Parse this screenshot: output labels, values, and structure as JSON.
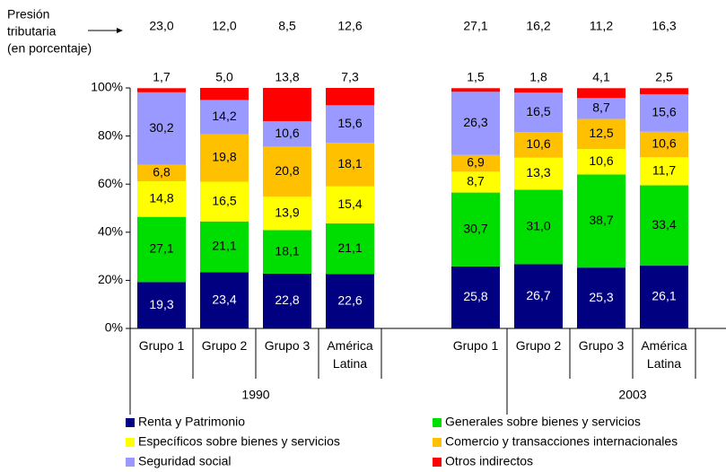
{
  "chart_data": {
    "type": "stacked_bar",
    "categories": [
      "Grupo 1",
      "Grupo 2",
      "Grupo 3",
      "América Latina",
      "Grupo 1",
      "Grupo 2",
      "Grupo 3",
      "América Latina"
    ],
    "groups": [
      "1990",
      "2003"
    ],
    "series": [
      {
        "name": "Renta y Patrimonio",
        "color": "#000080",
        "values": [
          19.3,
          23.4,
          22.8,
          22.6,
          25.8,
          26.7,
          25.3,
          26.1
        ],
        "value_labels": [
          "19,3",
          "23,4",
          "22,8",
          "22,6",
          "25,8",
          "26,7",
          "25,3",
          "26,1"
        ]
      },
      {
        "name": "Generales sobre bienes y servicios",
        "color": "#00dd00",
        "values": [
          27.1,
          21.1,
          18.1,
          21.1,
          30.7,
          31.0,
          38.7,
          33.4
        ],
        "value_labels": [
          "27,1",
          "21,1",
          "18,1",
          "21,1",
          "30,7",
          "31,0",
          "38,7",
          "33,4"
        ]
      },
      {
        "name": "Específicos sobre bienes y servicios",
        "color": "#ffff00",
        "values": [
          14.8,
          16.5,
          13.9,
          15.4,
          8.7,
          13.3,
          10.6,
          11.7
        ],
        "value_labels": [
          "14,8",
          "16,5",
          "13,9",
          "15,4",
          "8,7",
          "13,3",
          "10,6",
          "11,7"
        ]
      },
      {
        "name": "Comercio y transacciones internacionales",
        "color": "#ffc000",
        "values": [
          6.8,
          19.8,
          20.8,
          18.1,
          6.9,
          10.6,
          12.5,
          10.6
        ],
        "value_labels": [
          "6,8",
          "19,8",
          "20,8",
          "18,1",
          "6,9",
          "10,6",
          "12,5",
          "10,6"
        ]
      },
      {
        "name": "Seguridad social",
        "color": "#9999ff",
        "values": [
          30.2,
          14.2,
          10.6,
          15.6,
          26.3,
          16.5,
          8.7,
          15.6
        ],
        "value_labels": [
          "30,2",
          "14,2",
          "10,6",
          "15,6",
          "26,3",
          "16,5",
          "8,7",
          "15,6"
        ]
      },
      {
        "name": "Otros indirectos",
        "color": "#ff0000",
        "values": [
          1.7,
          5.0,
          13.8,
          7.3,
          1.5,
          1.8,
          4.1,
          2.5
        ],
        "value_labels": [
          "1,7",
          "5,0",
          "13,8",
          "7,3",
          "1,5",
          "1,8",
          "4,1",
          "2,5"
        ]
      }
    ],
    "pressure": {
      "label": [
        "Presión",
        "tributaria",
        "(en porcentaje)"
      ],
      "values": [
        23.0,
        12.0,
        8.5,
        12.6,
        27.1,
        16.2,
        11.2,
        16.3
      ],
      "value_labels": [
        "23,0",
        "12,0",
        "8,5",
        "12,6",
        "27,1",
        "16,2",
        "11,2",
        "16,3"
      ]
    },
    "ylim": [
      0,
      100
    ],
    "yticks": [
      {
        "value": 0,
        "label": "0%"
      },
      {
        "value": 20,
        "label": "20%"
      },
      {
        "value": 40,
        "label": "40%"
      },
      {
        "value": 60,
        "label": "60%"
      },
      {
        "value": 80,
        "label": "80%"
      },
      {
        "value": 100,
        "label": "100%"
      }
    ]
  }
}
